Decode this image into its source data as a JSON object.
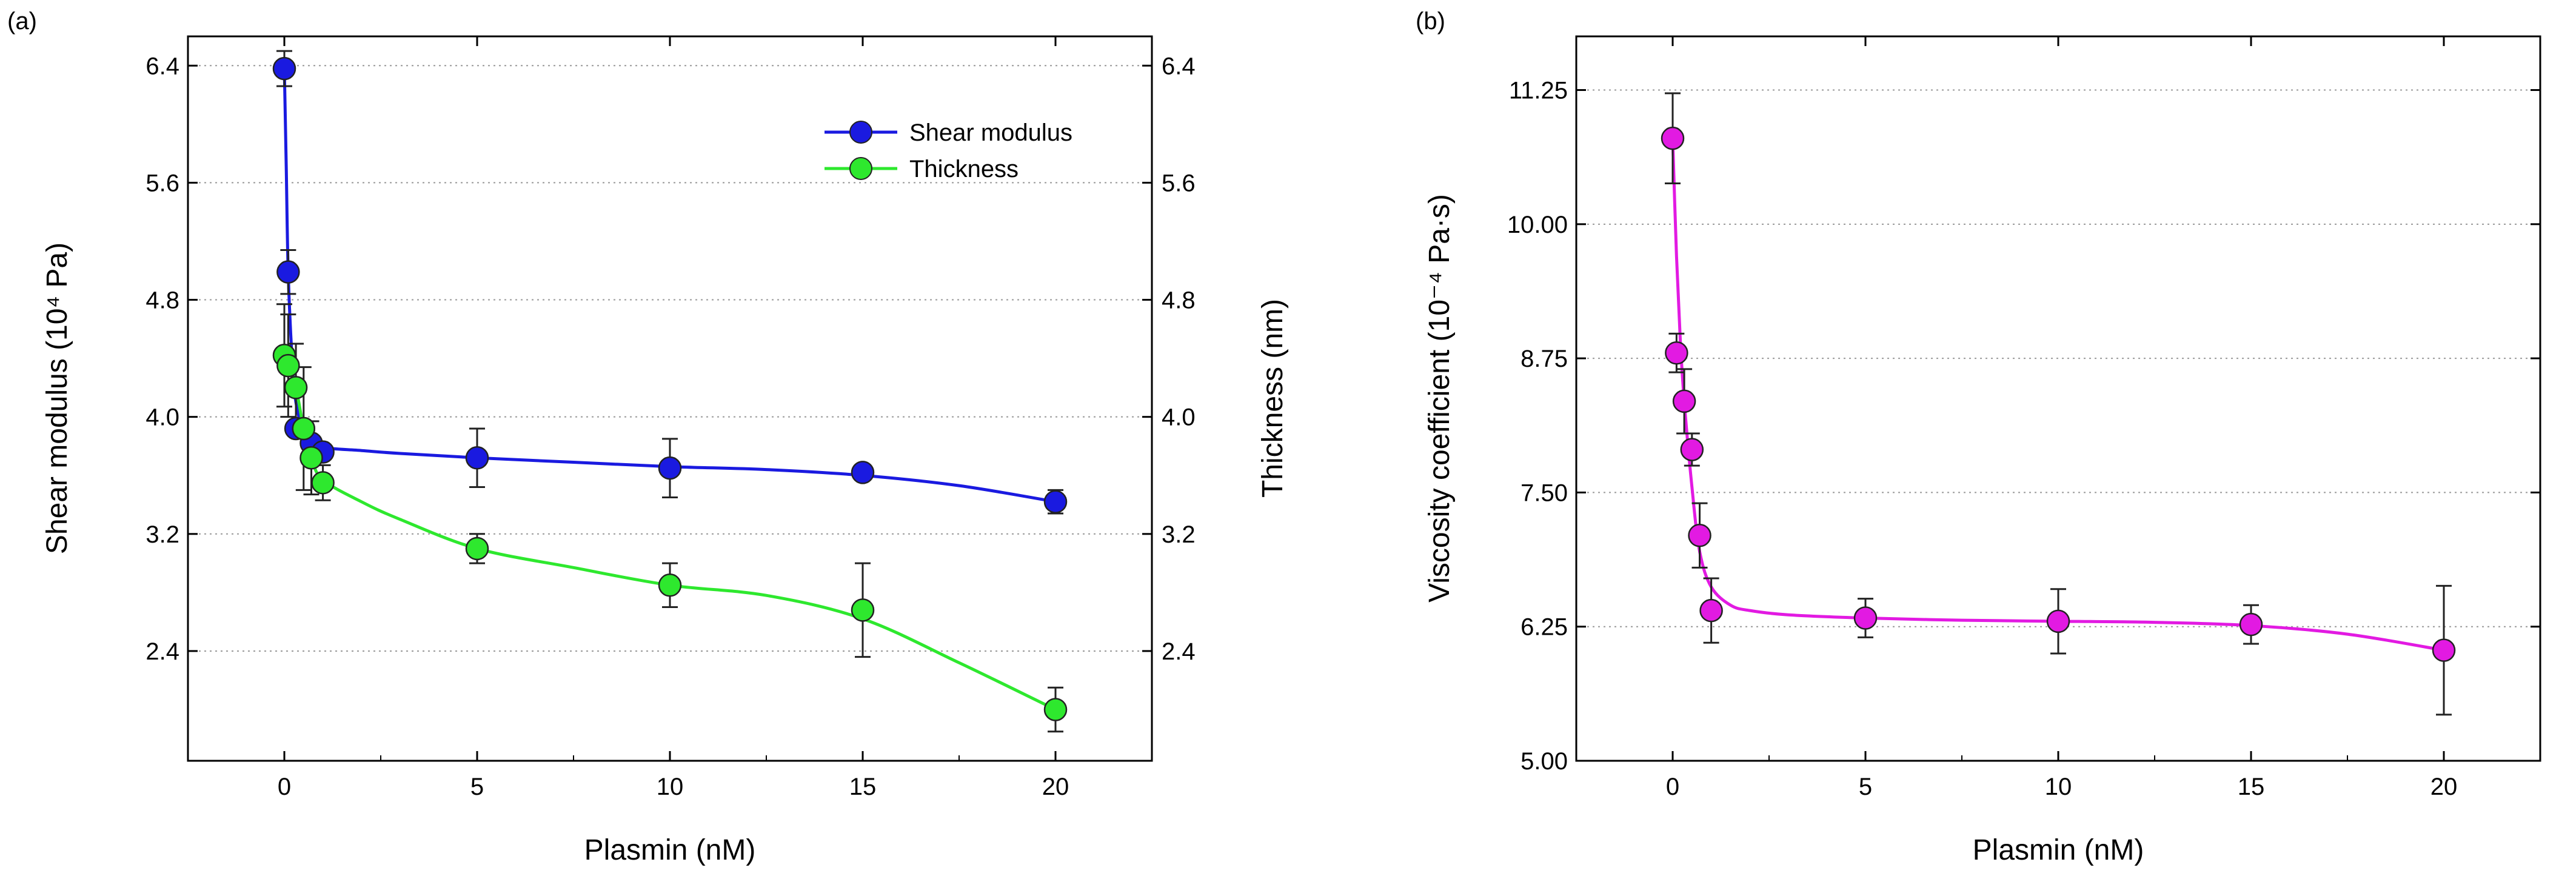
{
  "chart_data": [
    {
      "panel_label": "(a)",
      "type": "scatter",
      "xlabel": "Plasmin (nM)",
      "ylabel": "Shear modulus (10⁴ Pa)",
      "y2label": "Thickness (nm)",
      "xlim": [
        -2.5,
        22.5
      ],
      "ylim": [
        1.65,
        6.6
      ],
      "y2lim": [
        1.65,
        6.6
      ],
      "xticks": [
        0,
        5,
        10,
        15,
        20
      ],
      "yticks": [
        2.4,
        3.2,
        4.0,
        4.8,
        5.6,
        6.4
      ],
      "ytick_labels": [
        "2.4",
        "3.2",
        "4.0",
        "4.8",
        "5.6",
        "6.4"
      ],
      "y2ticks": [
        2.4,
        3.2,
        4.0,
        4.8,
        5.6,
        6.4
      ],
      "y2tick_labels": [
        "2.4",
        "3.2",
        "4.0",
        "4.8",
        "5.6",
        "6.4"
      ],
      "grid": "horizontal-dotted",
      "legend": "top-right",
      "series": [
        {
          "name": "Shear modulus",
          "axis": "left",
          "color": "#1a1ae0",
          "line_color": "#1a1ae0",
          "x": [
            0,
            0.1,
            0.3,
            0.5,
            0.7,
            1,
            5,
            10,
            15,
            20
          ],
          "y": [
            6.38,
            4.99,
            3.92,
            3.92,
            3.82,
            3.76,
            3.72,
            3.65,
            3.62,
            3.42
          ],
          "err": [
            0.12,
            0.15,
            0.0,
            0.0,
            0.0,
            0.0,
            0.2,
            0.2,
            0.05,
            0.08
          ],
          "fit_x": [
            0,
            0.05,
            0.1,
            0.2,
            0.3,
            0.5,
            0.7,
            1,
            2,
            3,
            5,
            7.5,
            10,
            12.5,
            15,
            17.5,
            20
          ],
          "fit_y": [
            6.38,
            5.7,
            4.99,
            4.4,
            4.1,
            3.9,
            3.83,
            3.79,
            3.77,
            3.75,
            3.72,
            3.69,
            3.66,
            3.64,
            3.6,
            3.53,
            3.42
          ]
        },
        {
          "name": "Thickness",
          "axis": "right",
          "color": "#2ee82e",
          "line_color": "#2ee82e",
          "x": [
            0,
            0.1,
            0.3,
            0.5,
            0.7,
            1,
            5,
            10,
            15,
            20
          ],
          "y": [
            4.42,
            4.35,
            4.2,
            3.92,
            3.72,
            3.55,
            3.1,
            2.85,
            2.68,
            2.0
          ],
          "err": [
            0.35,
            0.35,
            0.3,
            0.42,
            0.25,
            0.12,
            0.1,
            0.15,
            0.32,
            0.15
          ],
          "fit_x": [
            0,
            0.1,
            0.3,
            0.5,
            0.7,
            1,
            2,
            3,
            5,
            7.5,
            10,
            12.5,
            15,
            17.5,
            20
          ],
          "fit_y": [
            4.42,
            4.35,
            4.2,
            3.92,
            3.72,
            3.57,
            3.42,
            3.3,
            3.1,
            2.97,
            2.85,
            2.78,
            2.62,
            2.32,
            2.0
          ]
        }
      ]
    },
    {
      "panel_label": "(b)",
      "type": "scatter",
      "xlabel": "Plasmin (nM)",
      "ylabel": "Viscosity coefficient (10⁻⁴ Pa·s)",
      "xlim": [
        -2.5,
        22.5
      ],
      "ylim": [
        5.0,
        11.75
      ],
      "xticks": [
        0,
        5,
        10,
        15,
        20
      ],
      "yticks": [
        5.0,
        6.25,
        7.5,
        8.75,
        10.0,
        11.25
      ],
      "ytick_labels": [
        "5.00",
        "6.25",
        "7.50",
        "8.75",
        "10.00",
        "11.25"
      ],
      "grid": "horizontal-dotted",
      "series": [
        {
          "name": "Viscosity coefficient",
          "axis": "left",
          "color": "#e21ae2",
          "line_color": "#e21ae2",
          "x": [
            0,
            0.1,
            0.3,
            0.5,
            0.7,
            1,
            5,
            10,
            15,
            20
          ],
          "y": [
            10.8,
            8.8,
            8.35,
            7.9,
            7.1,
            6.4,
            6.33,
            6.3,
            6.27,
            6.03
          ],
          "err": [
            0.42,
            0.18,
            0.3,
            0.15,
            0.3,
            0.3,
            0.18,
            0.3,
            0.18,
            0.6
          ],
          "fit_x": [
            0,
            0.1,
            0.2,
            0.3,
            0.5,
            0.7,
            1,
            1.5,
            2,
            3,
            5,
            7.5,
            10,
            12.5,
            15,
            17.5,
            20
          ],
          "fit_y": [
            10.8,
            9.7,
            8.9,
            8.35,
            7.55,
            6.95,
            6.62,
            6.45,
            6.4,
            6.36,
            6.33,
            6.31,
            6.3,
            6.29,
            6.26,
            6.18,
            6.03
          ]
        }
      ]
    }
  ]
}
